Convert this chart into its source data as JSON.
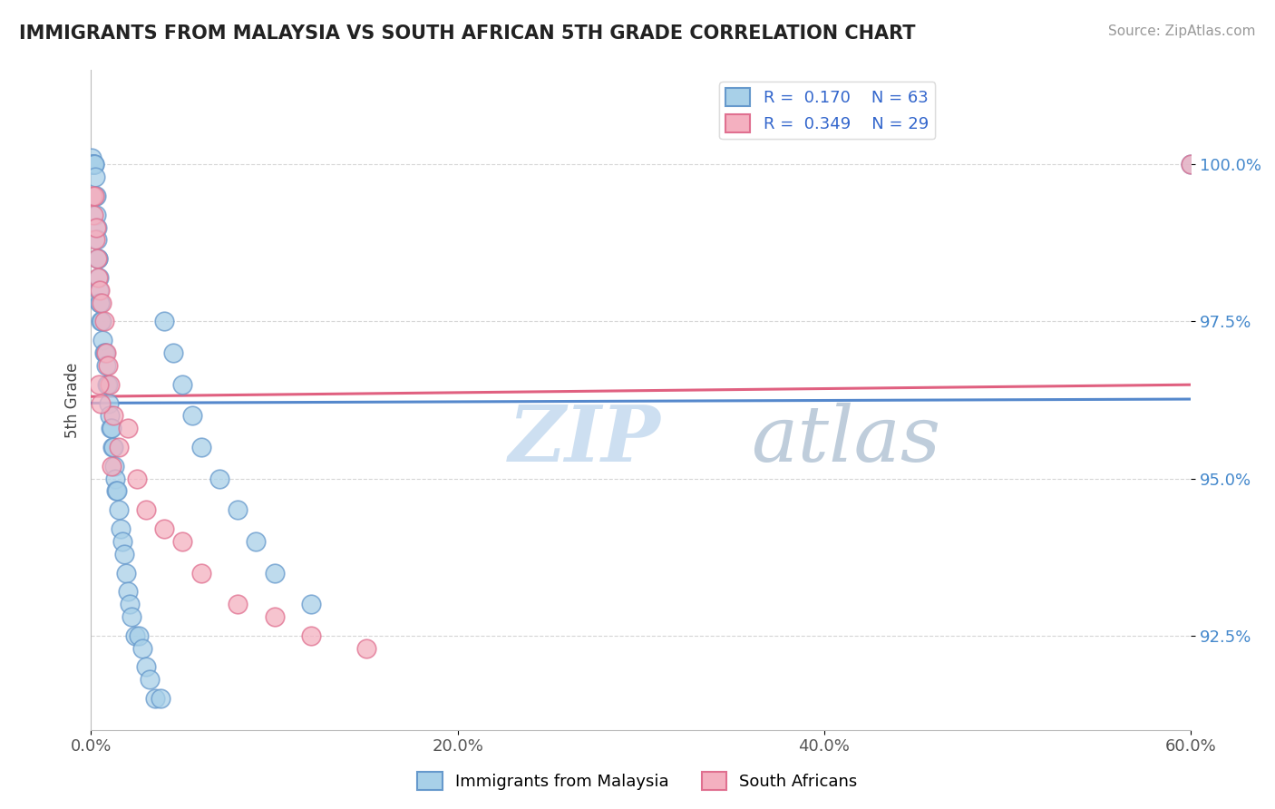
{
  "title": "IMMIGRANTS FROM MALAYSIA VS SOUTH AFRICAN 5TH GRADE CORRELATION CHART",
  "source": "Source: ZipAtlas.com",
  "xlabel_ticks": [
    "0.0%",
    "20.0%",
    "40.0%",
    "60.0%"
  ],
  "xlabel_tick_vals": [
    0.0,
    20.0,
    40.0,
    60.0
  ],
  "ylabel_ticks": [
    "92.5%",
    "95.0%",
    "97.5%",
    "100.0%"
  ],
  "ylabel_tick_vals": [
    92.5,
    95.0,
    97.5,
    100.0
  ],
  "xmin": 0.0,
  "xmax": 60.0,
  "ymin": 91.0,
  "ymax": 101.5,
  "ylabel": "5th Grade",
  "legend_r1": "R =  0.170    N = 63",
  "legend_r2": "R =  0.349    N = 29",
  "color_malaysia_face": "#A8D0E8",
  "color_malaysia_edge": "#6699CC",
  "color_southafrica_face": "#F4B0C0",
  "color_southafrica_edge": "#E07090",
  "color_malaysia_line": "#5588CC",
  "color_southafrica_line": "#E06080",
  "watermark_zip": "ZIP",
  "watermark_atlas": "atlas",
  "watermark_color_zip": "#C8DCF0",
  "watermark_color_atlas": "#B8C8D8",
  "malaysia_x": [
    0.05,
    0.08,
    0.1,
    0.12,
    0.15,
    0.18,
    0.2,
    0.22,
    0.25,
    0.28,
    0.3,
    0.32,
    0.35,
    0.38,
    0.4,
    0.42,
    0.45,
    0.48,
    0.5,
    0.55,
    0.6,
    0.65,
    0.7,
    0.75,
    0.8,
    0.85,
    0.9,
    0.95,
    1.0,
    1.05,
    1.1,
    1.15,
    1.2,
    1.25,
    1.3,
    1.35,
    1.4,
    1.5,
    1.6,
    1.7,
    1.8,
    1.9,
    2.0,
    2.1,
    2.2,
    2.4,
    2.6,
    2.8,
    3.0,
    3.2,
    3.5,
    3.8,
    4.0,
    4.5,
    5.0,
    5.5,
    6.0,
    7.0,
    8.0,
    9.0,
    10.0,
    12.0,
    60.0
  ],
  "malaysia_y": [
    100.1,
    100.0,
    100.0,
    100.0,
    100.0,
    100.0,
    100.0,
    99.8,
    99.5,
    99.5,
    99.2,
    99.0,
    98.8,
    98.5,
    98.5,
    98.2,
    98.0,
    97.8,
    97.8,
    97.5,
    97.5,
    97.2,
    97.0,
    97.0,
    96.8,
    96.5,
    96.5,
    96.2,
    96.0,
    95.8,
    95.8,
    95.5,
    95.5,
    95.2,
    95.0,
    94.8,
    94.8,
    94.5,
    94.2,
    94.0,
    93.8,
    93.5,
    93.2,
    93.0,
    92.8,
    92.5,
    92.5,
    92.3,
    92.0,
    91.8,
    91.5,
    91.5,
    97.5,
    97.0,
    96.5,
    96.0,
    95.5,
    95.0,
    94.5,
    94.0,
    93.5,
    93.0,
    100.0
  ],
  "southafrica_x": [
    0.1,
    0.15,
    0.2,
    0.25,
    0.3,
    0.35,
    0.4,
    0.5,
    0.6,
    0.7,
    0.8,
    0.9,
    1.0,
    1.2,
    1.5,
    2.0,
    2.5,
    3.0,
    4.0,
    5.0,
    6.0,
    8.0,
    10.0,
    12.0,
    15.0,
    0.45,
    0.55,
    1.1,
    60.0
  ],
  "southafrica_y": [
    99.5,
    99.2,
    99.5,
    98.8,
    99.0,
    98.5,
    98.2,
    98.0,
    97.8,
    97.5,
    97.0,
    96.8,
    96.5,
    96.0,
    95.5,
    95.8,
    95.0,
    94.5,
    94.2,
    94.0,
    93.5,
    93.0,
    92.8,
    92.5,
    92.3,
    96.5,
    96.2,
    95.2,
    100.0
  ]
}
